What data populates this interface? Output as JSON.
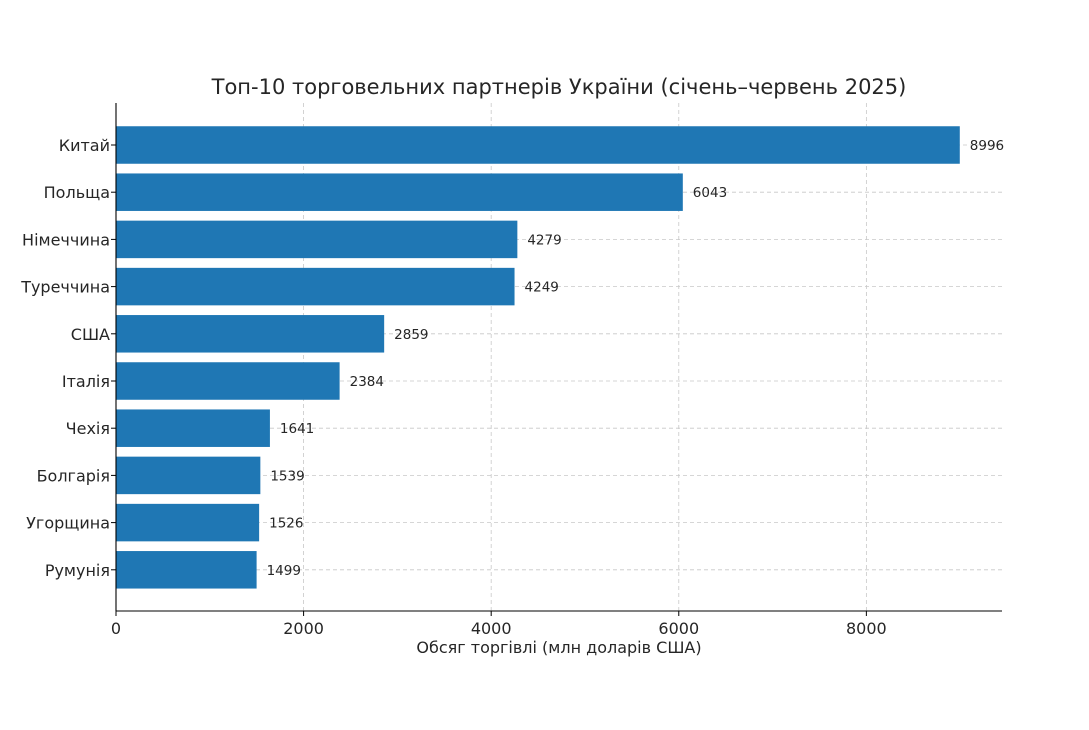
{
  "chart_data": {
    "type": "bar",
    "orientation": "horizontal",
    "title": "Топ-10 торговельних партнерів України (січень–червень 2025)",
    "xlabel": "Обсяг торгівлі (млн доларів США)",
    "ylabel": "",
    "categories": [
      "Китай",
      "Польща",
      "Німеччина",
      "Туреччина",
      "США",
      "Італія",
      "Чехія",
      "Болгарія",
      "Угорщина",
      "Румунія"
    ],
    "values": [
      8996,
      6043,
      4279,
      4249,
      2859,
      2384,
      1641,
      1539,
      1526,
      1499
    ],
    "xlim": [
      0,
      9446
    ],
    "xticks": [
      0,
      2000,
      4000,
      6000,
      8000
    ],
    "grid": true,
    "bar_color": "#1f77b4",
    "show_value_labels": true
  }
}
